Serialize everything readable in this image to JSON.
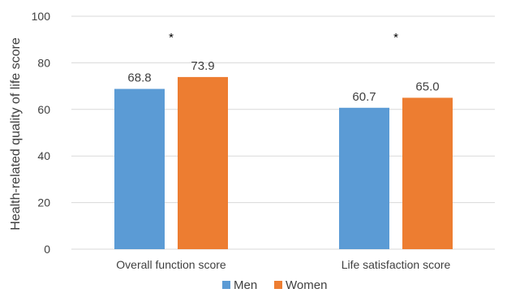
{
  "chart_data": {
    "type": "bar",
    "title": "",
    "xlabel": "",
    "ylabel": "Health-related quality of life score",
    "ylim": [
      0,
      100
    ],
    "yticks": [
      0,
      20,
      40,
      60,
      80,
      100
    ],
    "grid": true,
    "legend_position": "bottom",
    "categories": [
      "Overall function score",
      "Life satisfaction score"
    ],
    "series": [
      {
        "name": "Men",
        "color": "#5B9BD5",
        "values": [
          68.8,
          60.7
        ],
        "labels": [
          "68.8",
          "60.7"
        ]
      },
      {
        "name": "Women",
        "color": "#ED7D31",
        "values": [
          73.9,
          65.0
        ],
        "labels": [
          "73.9",
          "65.0"
        ]
      }
    ],
    "annotations": [
      "*",
      "*"
    ]
  }
}
